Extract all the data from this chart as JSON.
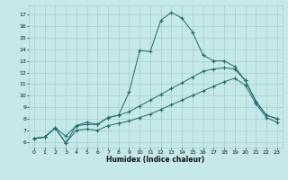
{
  "xlabel": "Humidex (Indice chaleur)",
  "bg_color": "#c5e8e8",
  "line_color": "#1a6b6b",
  "grid_color": "#a8cccc",
  "x_values": [
    0,
    1,
    2,
    3,
    4,
    5,
    6,
    7,
    8,
    9,
    10,
    11,
    12,
    13,
    14,
    15,
    16,
    17,
    18,
    19,
    20,
    21,
    22,
    23
  ],
  "line_wavy": [
    6.3,
    6.4,
    7.2,
    6.5,
    7.4,
    7.5,
    7.5,
    8.1,
    8.3,
    10.3,
    13.9,
    13.8,
    16.5,
    17.2,
    16.7,
    15.5,
    13.5,
    13.0,
    13.0,
    12.5,
    11.3,
    9.5,
    8.3,
    8.0
  ],
  "line_mid": [
    6.3,
    6.4,
    7.2,
    5.9,
    7.4,
    7.7,
    7.5,
    8.1,
    8.3,
    8.6,
    9.1,
    9.6,
    10.1,
    10.6,
    11.1,
    11.6,
    12.1,
    12.3,
    12.4,
    12.3,
    11.3,
    9.5,
    8.3,
    8.0
  ],
  "line_bot": [
    6.3,
    6.4,
    7.2,
    5.9,
    7.0,
    7.1,
    7.0,
    7.4,
    7.6,
    7.8,
    8.1,
    8.4,
    8.8,
    9.2,
    9.6,
    10.0,
    10.4,
    10.8,
    11.2,
    11.5,
    10.9,
    9.3,
    8.1,
    7.7
  ],
  "ylim": [
    5.5,
    17.8
  ],
  "xlim": [
    -0.5,
    23.5
  ],
  "yticks": [
    6,
    7,
    8,
    9,
    10,
    11,
    12,
    13,
    14,
    15,
    16,
    17
  ],
  "xticks": [
    0,
    1,
    2,
    3,
    4,
    5,
    6,
    7,
    8,
    9,
    10,
    11,
    12,
    13,
    14,
    15,
    16,
    17,
    18,
    19,
    20,
    21,
    22,
    23
  ],
  "figwidth": 3.2,
  "figheight": 2.0,
  "dpi": 100
}
